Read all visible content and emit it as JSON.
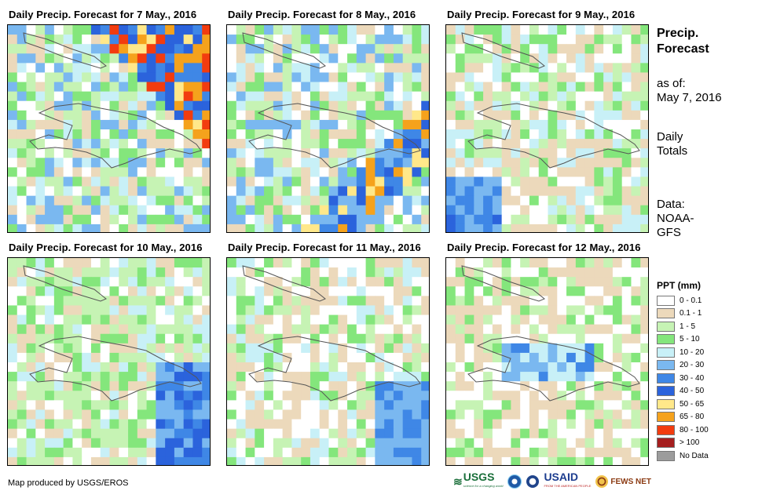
{
  "panels": [
    {
      "title": "Daily Precip. Forecast for 7 May., 2016"
    },
    {
      "title": "Daily Precip. Forecast for 8 May., 2016"
    },
    {
      "title": "Daily Precip. Forecast for 9 May., 2016"
    },
    {
      "title": "Daily Precip. Forecast for 10 May., 2016"
    },
    {
      "title": "Daily Precip. Forecast for 11 May., 2016"
    },
    {
      "title": "Daily Precip. Forecast for 12 May., 2016"
    }
  ],
  "side_info": {
    "title_line1": "Precip.",
    "title_line2": "Forecast",
    "asof_label": "as of:",
    "asof_date": "May 7, 2016",
    "totals_line1": "Daily",
    "totals_line2": "Totals",
    "data_line1": "Data:",
    "data_line2": "NOAA-",
    "data_line3": "GFS"
  },
  "legend": {
    "title": "PPT (mm)",
    "items": [
      {
        "label": "0 - 0.1",
        "color": "#ffffff"
      },
      {
        "label": "0.1 - 1",
        "color": "#ecd9bb"
      },
      {
        "label": "1 - 5",
        "color": "#c6f3b4"
      },
      {
        "label": "5 - 10",
        "color": "#84e67c"
      },
      {
        "label": "10 - 20",
        "color": "#c8f0f7"
      },
      {
        "label": "20 - 30",
        "color": "#7ab8f0"
      },
      {
        "label": "30 - 40",
        "color": "#3f87e6"
      },
      {
        "label": "40 - 50",
        "color": "#2b63dc"
      },
      {
        "label": "50 - 65",
        "color": "#ffe88a"
      },
      {
        "label": "65 - 80",
        "color": "#f5a21c"
      },
      {
        "label": "80 - 100",
        "color": "#f23c0f"
      },
      {
        "label": "> 100",
        "color": "#a51e1e"
      },
      {
        "label": "No Data",
        "color": "#9c9c9c"
      }
    ]
  },
  "credit": "Map produced by USGS/EROS",
  "logos": {
    "usgs": "USGS",
    "usgs_tagline": "science for a changing world",
    "usaid": "USAID",
    "usaid_tagline": "FROM THE AMERICAN PEOPLE",
    "fewsnet": "FEWS NET"
  }
}
